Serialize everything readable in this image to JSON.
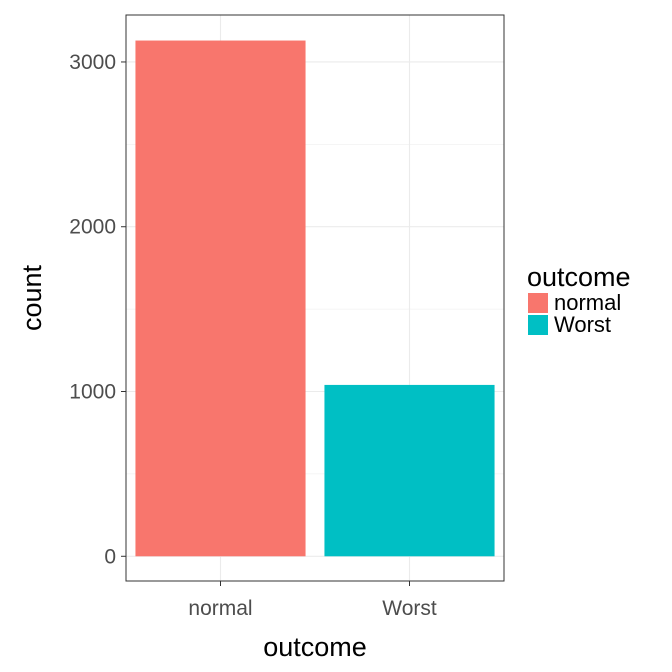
{
  "chart_data": {
    "type": "bar",
    "categories": [
      "normal",
      "Worst"
    ],
    "values": [
      3130,
      1040
    ],
    "colors": [
      "#F8766D",
      "#00BFC4"
    ],
    "title": "",
    "xlabel": "outcome",
    "ylabel": "count",
    "ylim": [
      -150,
      3285
    ],
    "yticks": [
      0,
      1000,
      2000,
      3000
    ],
    "grid": true,
    "legend": {
      "title": "outcome",
      "position": "right",
      "entries": [
        "normal",
        "Worst"
      ]
    }
  }
}
